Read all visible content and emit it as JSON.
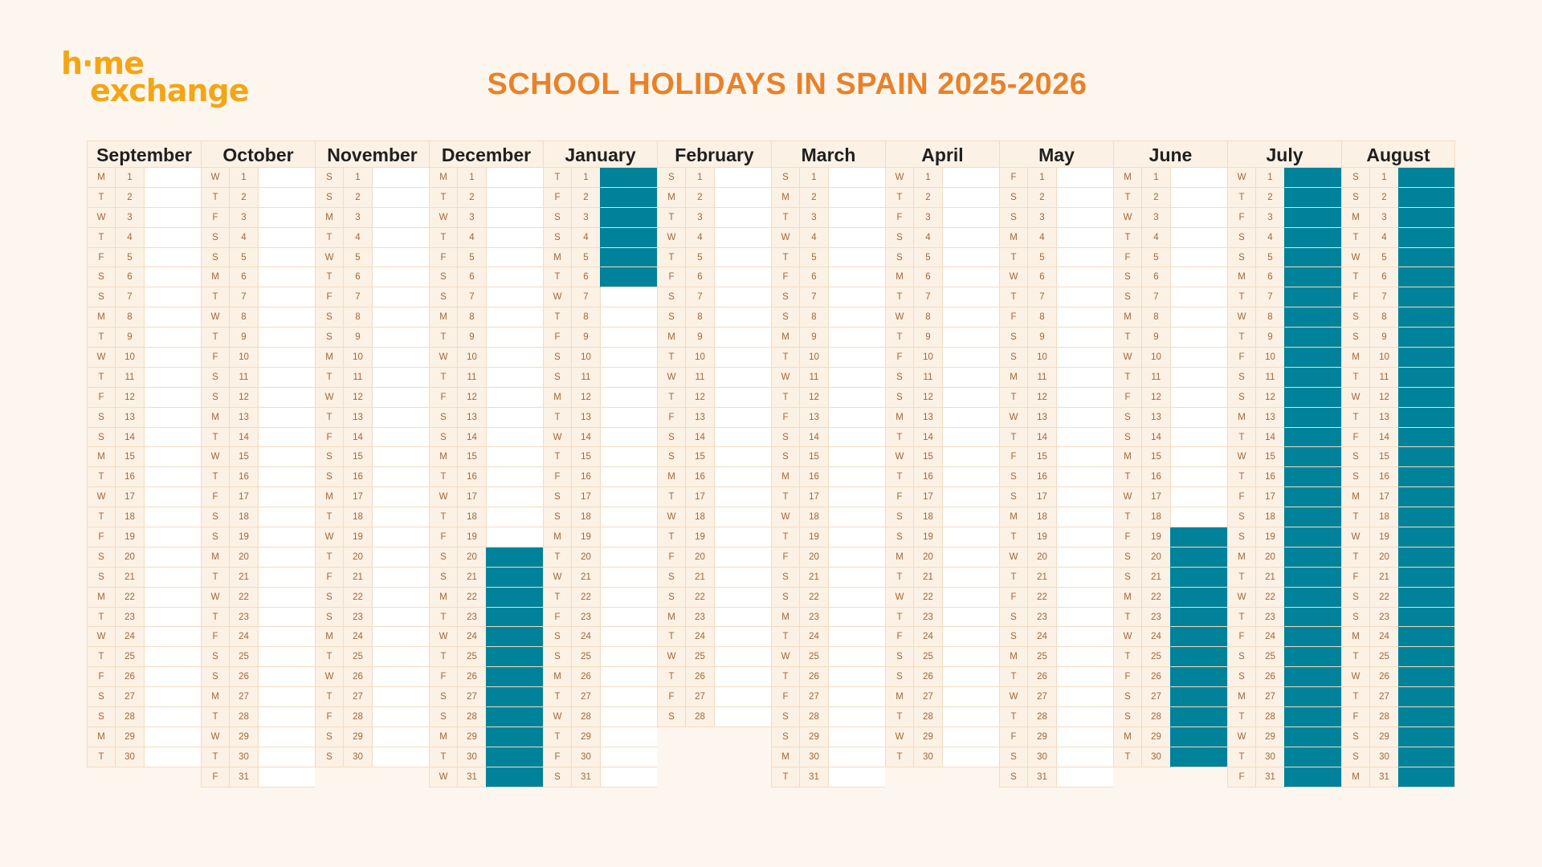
{
  "logo": {
    "line1": "h·me",
    "line2": "exchange"
  },
  "title": "SCHOOL HOLIDAYS IN SPAIN 2025-2026",
  "colors": {
    "holiday": "#00829a",
    "title": "#e8822a",
    "logo": "#f2a616",
    "background": "#fdf6ee"
  },
  "weekday_letters": [
    "M",
    "T",
    "W",
    "T",
    "F",
    "S",
    "S"
  ],
  "months": [
    {
      "name": "September",
      "days": 30,
      "start_weekday": 0,
      "holidays": []
    },
    {
      "name": "October",
      "days": 31,
      "start_weekday": 2,
      "holidays": []
    },
    {
      "name": "November",
      "days": 30,
      "start_weekday": 5,
      "holidays": []
    },
    {
      "name": "December",
      "days": 31,
      "start_weekday": 0,
      "holidays": [
        [
          20,
          31
        ]
      ]
    },
    {
      "name": "January",
      "days": 31,
      "start_weekday": 3,
      "holidays": [
        [
          1,
          6
        ]
      ]
    },
    {
      "name": "February",
      "days": 28,
      "start_weekday": 6,
      "holidays": []
    },
    {
      "name": "March",
      "days": 31,
      "start_weekday": 6,
      "holidays": []
    },
    {
      "name": "April",
      "days": 30,
      "start_weekday": 2,
      "holidays": []
    },
    {
      "name": "May",
      "days": 31,
      "start_weekday": 4,
      "holidays": []
    },
    {
      "name": "June",
      "days": 30,
      "start_weekday": 0,
      "holidays": [
        [
          19,
          30
        ]
      ]
    },
    {
      "name": "July",
      "days": 31,
      "start_weekday": 2,
      "holidays": [
        [
          1,
          31
        ]
      ]
    },
    {
      "name": "August",
      "days": 31,
      "start_weekday": 5,
      "holidays": [
        [
          1,
          31
        ]
      ]
    }
  ]
}
